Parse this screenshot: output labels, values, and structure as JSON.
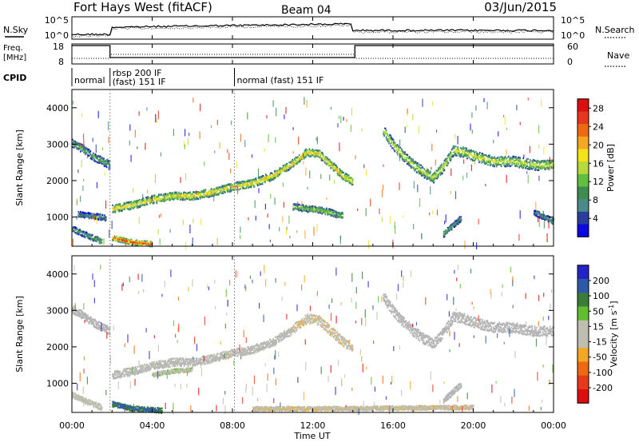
{
  "header": {
    "station": "Fort Hays West (fitACF)",
    "beam": "Beam 04",
    "date": "03/Jun/2015"
  },
  "noise_panel": {
    "left_label": "N.Sky",
    "left_ticks": [
      "10^5",
      "10^0"
    ],
    "right_label": "N.Search",
    "right_ticks": [
      "10^5",
      "10^0"
    ]
  },
  "freq_panel": {
    "left_label_1": "Freq.",
    "left_label_2": "[MHz]",
    "left_ticks": [
      "18",
      "8"
    ],
    "right_label": "Nave",
    "right_ticks": [
      "60",
      "0"
    ]
  },
  "cpid_panel": {
    "label": "CPID",
    "segments": [
      {
        "start_hour": 0.0,
        "end_hour": 1.9,
        "lines": [
          "normal"
        ]
      },
      {
        "start_hour": 1.9,
        "end_hour": 8.1,
        "lines": [
          "rbsp 200 IF",
          "(fast) 151 IF"
        ]
      },
      {
        "start_hour": 8.1,
        "end_hour": 24.0,
        "lines": [
          "normal (fast) 151 IF"
        ]
      }
    ]
  },
  "x_axis": {
    "label": "Time UT",
    "tick_labels": [
      "00:00",
      "04:00",
      "08:00",
      "12:00",
      "16:00",
      "20:00",
      "00:00"
    ],
    "range_hours": [
      0,
      24
    ]
  },
  "colors": {
    "power_scale": [
      "#0a0ae0",
      "#2a3ea0",
      "#4a8a8a",
      "#3e8c50",
      "#5fbf3f",
      "#b8d93c",
      "#f2e21c",
      "#f5a623",
      "#ee6a12",
      "#e6361b",
      "#dc0e0e"
    ],
    "velocity_scale": [
      "#2323c8",
      "#2b5aa8",
      "#3a7d3a",
      "#5fbf2f",
      "#bfbfb0",
      "#bfbfb0",
      "#f5a623",
      "#ee6a12",
      "#e63a1b",
      "#dc0e0e"
    ],
    "ground_scatter": "#b4b4b4"
  },
  "chart_data": [
    {
      "type": "heatmap",
      "name": "power",
      "xlabel": "",
      "ylabel": "Slant Range [km]",
      "y_ticks": [
        "1000",
        "2000",
        "3000",
        "4000"
      ],
      "ylim": [
        200,
        4500
      ],
      "xlim_hours": [
        0,
        24
      ],
      "colorbar": {
        "label": "Power [dB]",
        "ticks": [
          "4",
          "8",
          "12",
          "16",
          "20",
          "24",
          "28"
        ],
        "range": [
          0,
          30
        ]
      },
      "scatter_traces": [
        {
          "points": [
            [
              0.0,
              3050
            ],
            [
              0.5,
              2900
            ],
            [
              1.0,
              2700
            ],
            [
              1.5,
              2550
            ],
            [
              1.9,
              2450
            ]
          ],
          "width_km": 220,
          "power": 8
        },
        {
          "points": [
            [
              2.0,
              1250
            ],
            [
              3.0,
              1350
            ],
            [
              4.0,
              1500
            ],
            [
              5.0,
              1600
            ],
            [
              6.0,
              1600
            ],
            [
              7.0,
              1700
            ],
            [
              8.0,
              1850
            ],
            [
              9.0,
              1950
            ],
            [
              10.0,
              2150
            ],
            [
              11.0,
              2500
            ],
            [
              11.7,
              2800
            ],
            [
              12.3,
              2750
            ],
            [
              13.0,
              2400
            ],
            [
              13.5,
              2150
            ],
            [
              14.0,
              2000
            ]
          ],
          "width_km": 220,
          "power": 14
        },
        {
          "points": [
            [
              15.5,
              3400
            ],
            [
              16.0,
              3000
            ],
            [
              16.5,
              2700
            ],
            [
              17.0,
              2450
            ],
            [
              17.5,
              2250
            ],
            [
              18.0,
              2100
            ],
            [
              18.5,
              2400
            ],
            [
              19.0,
              2850
            ],
            [
              19.5,
              2800
            ],
            [
              20.0,
              2700
            ],
            [
              21.0,
              2550
            ],
            [
              22.0,
              2550
            ],
            [
              23.0,
              2450
            ],
            [
              24.0,
              2450
            ]
          ],
          "width_km": 280,
          "power": 12
        },
        {
          "points": [
            [
              0.0,
              700
            ],
            [
              0.8,
              500
            ],
            [
              1.5,
              350
            ]
          ],
          "width_km": 160,
          "power": 8
        },
        {
          "points": [
            [
              0.3,
              1100
            ],
            [
              1.0,
              1050
            ],
            [
              1.7,
              1000
            ]
          ],
          "width_km": 160,
          "power": 6
        },
        {
          "points": [
            [
              2.0,
              450
            ],
            [
              3.0,
              330
            ],
            [
              4.0,
              280
            ]
          ],
          "width_km": 140,
          "power": 20
        },
        {
          "points": [
            [
              11.0,
              1300
            ],
            [
              12.5,
              1200
            ],
            [
              13.5,
              1050
            ]
          ],
          "width_km": 180,
          "power": 10
        },
        {
          "points": [
            [
              18.5,
              550
            ],
            [
              19.0,
              800
            ],
            [
              19.4,
              1000
            ]
          ],
          "width_km": 160,
          "power": 8
        },
        {
          "points": [
            [
              23.0,
              1150
            ],
            [
              24.0,
              900
            ]
          ],
          "width_km": 160,
          "power": 6
        }
      ]
    },
    {
      "type": "heatmap",
      "name": "velocity",
      "xlabel": "Time UT",
      "ylabel": "Slant Range [km]",
      "y_ticks": [
        "1000",
        "2000",
        "3000",
        "4000"
      ],
      "ylim": [
        200,
        4500
      ],
      "xlim_hours": [
        0,
        24
      ],
      "colorbar": {
        "label": "Velocity [m s^-1]",
        "ticks": [
          "200",
          "100",
          "50",
          "15",
          "-15",
          "-50",
          "-100",
          "-200"
        ],
        "range": [
          -250,
          250
        ]
      },
      "scatter_traces": [
        {
          "points": [
            [
              0.0,
              3050
            ],
            [
              0.5,
              2900
            ],
            [
              1.0,
              2700
            ],
            [
              1.5,
              2550
            ],
            [
              1.9,
              2450
            ]
          ],
          "width_km": 220,
          "velocity": 0
        },
        {
          "points": [
            [
              2.0,
              1250
            ],
            [
              3.0,
              1350
            ],
            [
              4.0,
              1500
            ],
            [
              5.0,
              1600
            ],
            [
              6.0,
              1600
            ],
            [
              7.0,
              1700
            ],
            [
              8.0,
              1850
            ],
            [
              9.0,
              1950
            ],
            [
              10.0,
              2150
            ],
            [
              11.0,
              2500
            ]
          ],
          "width_km": 220,
          "velocity": -10
        },
        {
          "points": [
            [
              11.0,
              2500
            ],
            [
              11.7,
              2800
            ],
            [
              12.3,
              2750
            ],
            [
              13.0,
              2400
            ],
            [
              13.5,
              2150
            ],
            [
              14.0,
              2000
            ]
          ],
          "width_km": 260,
          "velocity": 40
        },
        {
          "points": [
            [
              15.5,
              3400
            ],
            [
              16.0,
              3000
            ],
            [
              16.5,
              2700
            ],
            [
              17.0,
              2450
            ],
            [
              17.5,
              2250
            ],
            [
              18.0,
              2100
            ],
            [
              18.5,
              2400
            ],
            [
              19.0,
              2850
            ],
            [
              19.5,
              2800
            ],
            [
              20.0,
              2700
            ],
            [
              21.0,
              2550
            ],
            [
              22.0,
              2550
            ],
            [
              23.0,
              2450
            ],
            [
              24.0,
              2450
            ]
          ],
          "width_km": 280,
          "velocity": 0
        },
        {
          "points": [
            [
              0.0,
              700
            ],
            [
              0.8,
              500
            ],
            [
              1.5,
              350
            ]
          ],
          "width_km": 160,
          "velocity": 30
        },
        {
          "points": [
            [
              2.0,
              450
            ],
            [
              3.0,
              330
            ],
            [
              4.5,
              270
            ]
          ],
          "width_km": 140,
          "velocity": -150
        },
        {
          "points": [
            [
              4.0,
              1250
            ],
            [
              5.0,
              1350
            ],
            [
              6.0,
              1400
            ]
          ],
          "width_km": 120,
          "velocity": -40
        },
        {
          "points": [
            [
              9.0,
              320
            ],
            [
              14.0,
              330
            ],
            [
              20.0,
              360
            ]
          ],
          "width_km": 120,
          "velocity": 40
        },
        {
          "points": [
            [
              18.5,
              550
            ],
            [
              19.0,
              800
            ],
            [
              19.4,
              1000
            ]
          ],
          "width_km": 160,
          "velocity": 0
        }
      ]
    }
  ]
}
